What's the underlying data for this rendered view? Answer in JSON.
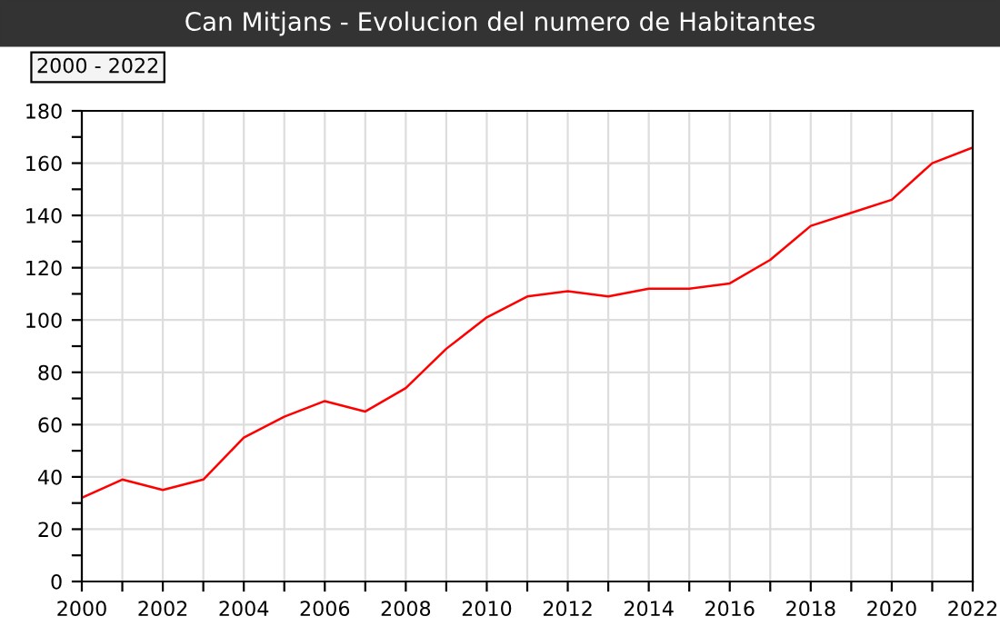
{
  "chart_data": {
    "type": "line",
    "title": "Can Mitjans - Evolucion del numero de Habitantes",
    "annotations": [
      "2000 - 2022"
    ],
    "x": [
      2000,
      2001,
      2002,
      2003,
      2004,
      2005,
      2006,
      2007,
      2008,
      2009,
      2010,
      2011,
      2012,
      2013,
      2014,
      2015,
      2016,
      2017,
      2018,
      2019,
      2020,
      2021,
      2022
    ],
    "series": [
      {
        "color": "#ff0000",
        "values": [
          32,
          39,
          35,
          39,
          55,
          63,
          69,
          65,
          74,
          89,
          101,
          109,
          111,
          109,
          112,
          112,
          114,
          123,
          136,
          141,
          146,
          160,
          166
        ]
      }
    ],
    "xlim": [
      2000,
      2022
    ],
    "ylim": [
      0,
      180
    ],
    "xticks": [
      2000,
      {
        "value": 2001,
        "label": null
      },
      2002,
      {
        "value": 2003,
        "label": null
      },
      2004,
      {
        "value": 2005,
        "label": null
      },
      2006,
      {
        "value": 2007,
        "label": null
      },
      2008,
      {
        "value": 2009,
        "label": null
      },
      2010,
      {
        "value": 2011,
        "label": null
      },
      2012,
      {
        "value": 2013,
        "label": null
      },
      2014,
      {
        "value": 2015,
        "label": null
      },
      2016,
      {
        "value": 2017,
        "label": null
      },
      2018,
      {
        "value": 2019,
        "label": null
      },
      2020,
      {
        "value": 2021,
        "label": null
      },
      2022
    ],
    "yticks": [
      0,
      {
        "value": 10,
        "label": null
      },
      20,
      {
        "value": 30,
        "label": null
      },
      40,
      {
        "value": 50,
        "label": null
      },
      60,
      {
        "value": 70,
        "label": null
      },
      80,
      {
        "value": 90,
        "label": null
      },
      100,
      {
        "value": 110,
        "label": null
      },
      120,
      {
        "value": 130,
        "label": null
      },
      140,
      {
        "value": 150,
        "label": null
      },
      160,
      {
        "value": 170,
        "label": null
      },
      180
    ],
    "grid": true,
    "marker": "none",
    "line_style": "solid"
  }
}
